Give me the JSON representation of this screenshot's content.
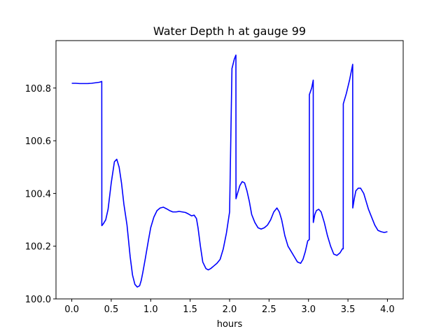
{
  "chart_data": {
    "type": "line",
    "title": "Water Depth h at gauge 99",
    "xlabel": "hours",
    "ylabel": "",
    "xlim": [
      -0.2,
      4.2
    ],
    "ylim": [
      100.0,
      100.98
    ],
    "xticks": [
      0.0,
      0.5,
      1.0,
      1.5,
      2.0,
      2.5,
      3.0,
      3.5,
      4.0
    ],
    "xtick_labels": [
      "0.0",
      "0.5",
      "1.0",
      "1.5",
      "2.0",
      "2.5",
      "3.0",
      "3.5",
      "4.0"
    ],
    "yticks": [
      100.0,
      100.2,
      100.4,
      100.6,
      100.8
    ],
    "ytick_labels": [
      "100.0",
      "100.2",
      "100.4",
      "100.6",
      "100.8"
    ],
    "grid": false,
    "legend": "none",
    "colors": {
      "line": "#0000ff"
    },
    "series": [
      {
        "x": [
          0.0,
          0.05,
          0.1,
          0.15,
          0.2,
          0.25,
          0.3,
          0.35,
          0.38,
          0.381,
          0.4,
          0.43,
          0.46,
          0.5,
          0.54,
          0.57,
          0.6,
          0.63,
          0.66,
          0.7,
          0.74,
          0.77,
          0.8,
          0.83,
          0.86,
          0.88,
          0.9,
          0.93,
          0.97,
          1.0,
          1.04,
          1.08,
          1.12,
          1.16,
          1.2,
          1.24,
          1.28,
          1.32,
          1.36,
          1.4,
          1.44,
          1.48,
          1.52,
          1.55,
          1.58,
          1.6,
          1.63,
          1.66,
          1.7,
          1.73,
          1.76,
          1.8,
          1.84,
          1.88,
          1.92,
          1.96,
          2.0,
          2.03,
          2.031,
          2.06,
          2.08,
          2.081,
          2.1,
          2.13,
          2.16,
          2.19,
          2.22,
          2.25,
          2.28,
          2.32,
          2.36,
          2.4,
          2.44,
          2.48,
          2.52,
          2.56,
          2.6,
          2.63,
          2.66,
          2.7,
          2.74,
          2.78,
          2.82,
          2.86,
          2.9,
          2.93,
          2.96,
          2.99,
          3.01,
          3.011,
          3.04,
          3.06,
          3.061,
          3.08,
          3.1,
          3.13,
          3.16,
          3.2,
          3.24,
          3.28,
          3.32,
          3.36,
          3.4,
          3.43,
          3.44,
          3.441,
          3.48,
          3.52,
          3.56,
          3.561,
          3.58,
          3.6,
          3.63,
          3.66,
          3.7,
          3.73,
          3.76,
          3.8,
          3.84,
          3.88,
          3.92,
          3.96,
          4.0
        ],
        "values": [
          100.818,
          100.818,
          100.817,
          100.817,
          100.817,
          100.818,
          100.82,
          100.822,
          100.825,
          100.278,
          100.285,
          100.3,
          100.34,
          100.44,
          100.52,
          100.53,
          100.5,
          100.44,
          100.36,
          100.28,
          100.16,
          100.09,
          100.055,
          100.045,
          100.05,
          100.07,
          100.1,
          100.15,
          100.22,
          100.27,
          100.31,
          100.335,
          100.345,
          100.348,
          100.342,
          100.335,
          100.33,
          100.33,
          100.332,
          100.33,
          100.328,
          100.322,
          100.315,
          100.318,
          100.305,
          100.27,
          100.2,
          100.14,
          100.115,
          100.11,
          100.115,
          100.125,
          100.135,
          100.15,
          100.19,
          100.25,
          100.33,
          100.875,
          100.875,
          100.91,
          100.925,
          100.38,
          100.4,
          100.43,
          100.445,
          100.44,
          100.41,
          100.37,
          100.32,
          100.29,
          100.27,
          100.265,
          100.27,
          100.28,
          100.3,
          100.33,
          100.345,
          100.33,
          100.3,
          100.24,
          100.2,
          100.18,
          100.16,
          100.14,
          100.135,
          100.15,
          100.18,
          100.22,
          100.225,
          100.775,
          100.8,
          100.83,
          100.29,
          100.32,
          100.335,
          100.34,
          100.33,
          100.29,
          100.24,
          100.2,
          100.17,
          100.165,
          100.175,
          100.19,
          100.19,
          100.74,
          100.78,
          100.83,
          100.89,
          100.345,
          100.38,
          100.41,
          100.42,
          100.42,
          100.4,
          100.37,
          100.34,
          100.31,
          100.28,
          100.26,
          100.255,
          100.252,
          100.255
        ]
      }
    ]
  }
}
